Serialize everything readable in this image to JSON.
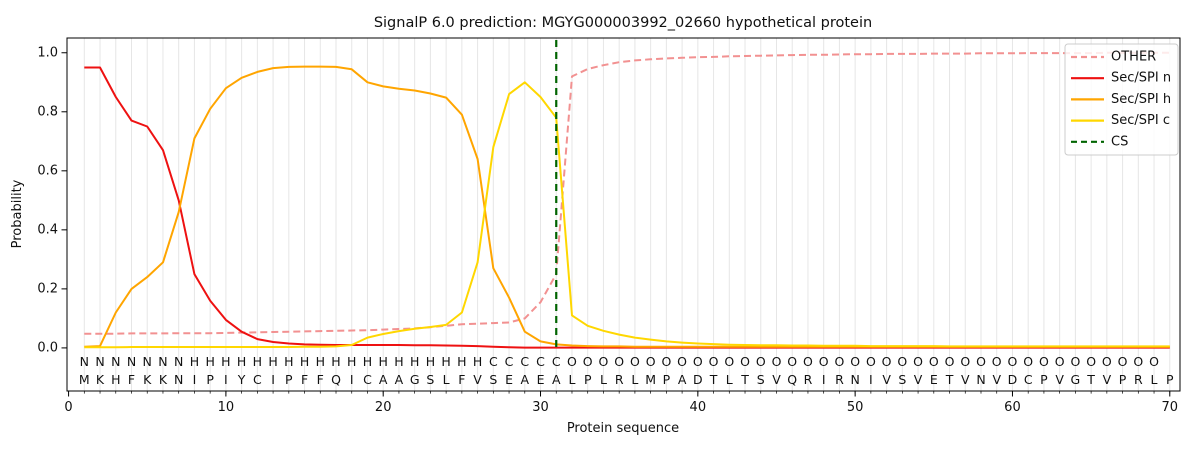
{
  "chart_data": {
    "type": "line",
    "title": "SignalP 6.0 prediction: MGYG000003992_02660 hypothetical protein",
    "xlabel": "Protein sequence",
    "ylabel": "Probability",
    "x_ticks": [
      0,
      10,
      20,
      30,
      40,
      50,
      60,
      70
    ],
    "y_ticks": [
      "0.0",
      "0.2",
      "0.4",
      "0.6",
      "0.8",
      "1.0"
    ],
    "ylim": [
      -0.146,
      1.05
    ],
    "xlim": [
      -0.1,
      70.65
    ],
    "grid": "vertical gridline at every residue position",
    "legend_position": "upper right",
    "x_start": 1,
    "series": [
      {
        "name": "OTHER",
        "color": "#f29191",
        "dashed": true,
        "values": [
          0.048,
          0.048,
          0.048,
          0.049,
          0.049,
          0.049,
          0.05,
          0.05,
          0.05,
          0.051,
          0.052,
          0.053,
          0.054,
          0.055,
          0.056,
          0.057,
          0.058,
          0.059,
          0.06,
          0.062,
          0.064,
          0.066,
          0.07,
          0.075,
          0.08,
          0.082,
          0.084,
          0.086,
          0.1,
          0.155,
          0.25,
          0.92,
          0.945,
          0.958,
          0.968,
          0.974,
          0.978,
          0.981,
          0.983,
          0.985,
          0.986,
          0.988,
          0.989,
          0.99,
          0.991,
          0.992,
          0.993,
          0.993,
          0.994,
          0.995,
          0.995,
          0.996,
          0.996,
          0.996,
          0.997,
          0.997,
          0.997,
          0.998,
          0.998,
          0.998,
          0.999,
          0.999,
          0.999,
          0.999,
          0.999,
          1.0,
          1.0,
          1.0,
          1.0,
          1.0
        ]
      },
      {
        "name": "Sec/SPI n",
        "color": "#ee1111",
        "dashed": false,
        "values": [
          0.95,
          0.95,
          0.85,
          0.77,
          0.75,
          0.67,
          0.5,
          0.25,
          0.16,
          0.095,
          0.055,
          0.03,
          0.02,
          0.015,
          0.012,
          0.011,
          0.01,
          0.01,
          0.01,
          0.01,
          0.01,
          0.009,
          0.009,
          0.008,
          0.007,
          0.006,
          0.004,
          0.002,
          0.001,
          0.001,
          0.001,
          0.001,
          0.001,
          0.001,
          0.001,
          0.001,
          0.001,
          0.001,
          0.001,
          0.001,
          0.001,
          0.001,
          0.001,
          0.001,
          0.001,
          0.001,
          0.001,
          0.001,
          0.001,
          0.001,
          0.001,
          0.001,
          0.001,
          0.001,
          0.001,
          0.001,
          0.001,
          0.001,
          0.001,
          0.001,
          0.001,
          0.001,
          0.001,
          0.001,
          0.001,
          0.001,
          0.001,
          0.001,
          0.001,
          0.001
        ]
      },
      {
        "name": "Sec/SPI h",
        "color": "#ffa500",
        "dashed": false,
        "values": [
          0.004,
          0.006,
          0.12,
          0.2,
          0.24,
          0.29,
          0.46,
          0.71,
          0.81,
          0.88,
          0.915,
          0.935,
          0.948,
          0.952,
          0.953,
          0.953,
          0.952,
          0.944,
          0.9,
          0.886,
          0.878,
          0.872,
          0.862,
          0.848,
          0.79,
          0.64,
          0.27,
          0.17,
          0.055,
          0.022,
          0.012,
          0.008,
          0.006,
          0.005,
          0.005,
          0.004,
          0.004,
          0.004,
          0.004,
          0.004,
          0.004,
          0.004,
          0.004,
          0.004,
          0.004,
          0.004,
          0.004,
          0.004,
          0.004,
          0.004,
          0.004,
          0.004,
          0.004,
          0.004,
          0.004,
          0.004,
          0.004,
          0.004,
          0.004,
          0.004,
          0.004,
          0.004,
          0.004,
          0.004,
          0.004,
          0.004,
          0.004,
          0.004,
          0.004,
          0.004
        ]
      },
      {
        "name": "Sec/SPI c",
        "color": "#ffd700",
        "dashed": false,
        "values": [
          0.002,
          0.002,
          0.002,
          0.003,
          0.003,
          0.003,
          0.003,
          0.003,
          0.003,
          0.003,
          0.003,
          0.003,
          0.003,
          0.003,
          0.004,
          0.004,
          0.005,
          0.01,
          0.035,
          0.047,
          0.057,
          0.065,
          0.071,
          0.078,
          0.12,
          0.29,
          0.68,
          0.86,
          0.9,
          0.85,
          0.78,
          0.11,
          0.075,
          0.058,
          0.045,
          0.035,
          0.028,
          0.022,
          0.018,
          0.015,
          0.013,
          0.011,
          0.01,
          0.009,
          0.009,
          0.008,
          0.008,
          0.007,
          0.007,
          0.007,
          0.006,
          0.006,
          0.006,
          0.006,
          0.006,
          0.005,
          0.005,
          0.005,
          0.005,
          0.005,
          0.005,
          0.005,
          0.005,
          0.005,
          0.005,
          0.005,
          0.005,
          0.005,
          0.005,
          0.005
        ]
      }
    ],
    "cs_line": {
      "name": "CS",
      "position": 31,
      "color": "#006400",
      "dashed": true
    },
    "sequence": "MKHFKKNIPIYCIPFFQICAAGSLFVSEAEALPLRLMPADTLTSVQRIRNIVSVETVNVDCPVGTVPRLP",
    "region_labels": "NNNNNNNHHHHHHHHHHHHHHHHHHHCCCCCOOOOOOOOOOOOOOOOOOOOOOOOOOOOOOOOOOOOOO",
    "region_colors": {
      "N": "#ee1111",
      "H": "#ffa500",
      "C": "#eec900",
      "O": "#848484"
    },
    "sequence_color": "#202020",
    "grid_color": "#e6e6e6",
    "legend_labels": [
      "OTHER",
      "Sec/SPI n",
      "Sec/SPI h",
      "Sec/SPI c",
      "CS"
    ]
  }
}
